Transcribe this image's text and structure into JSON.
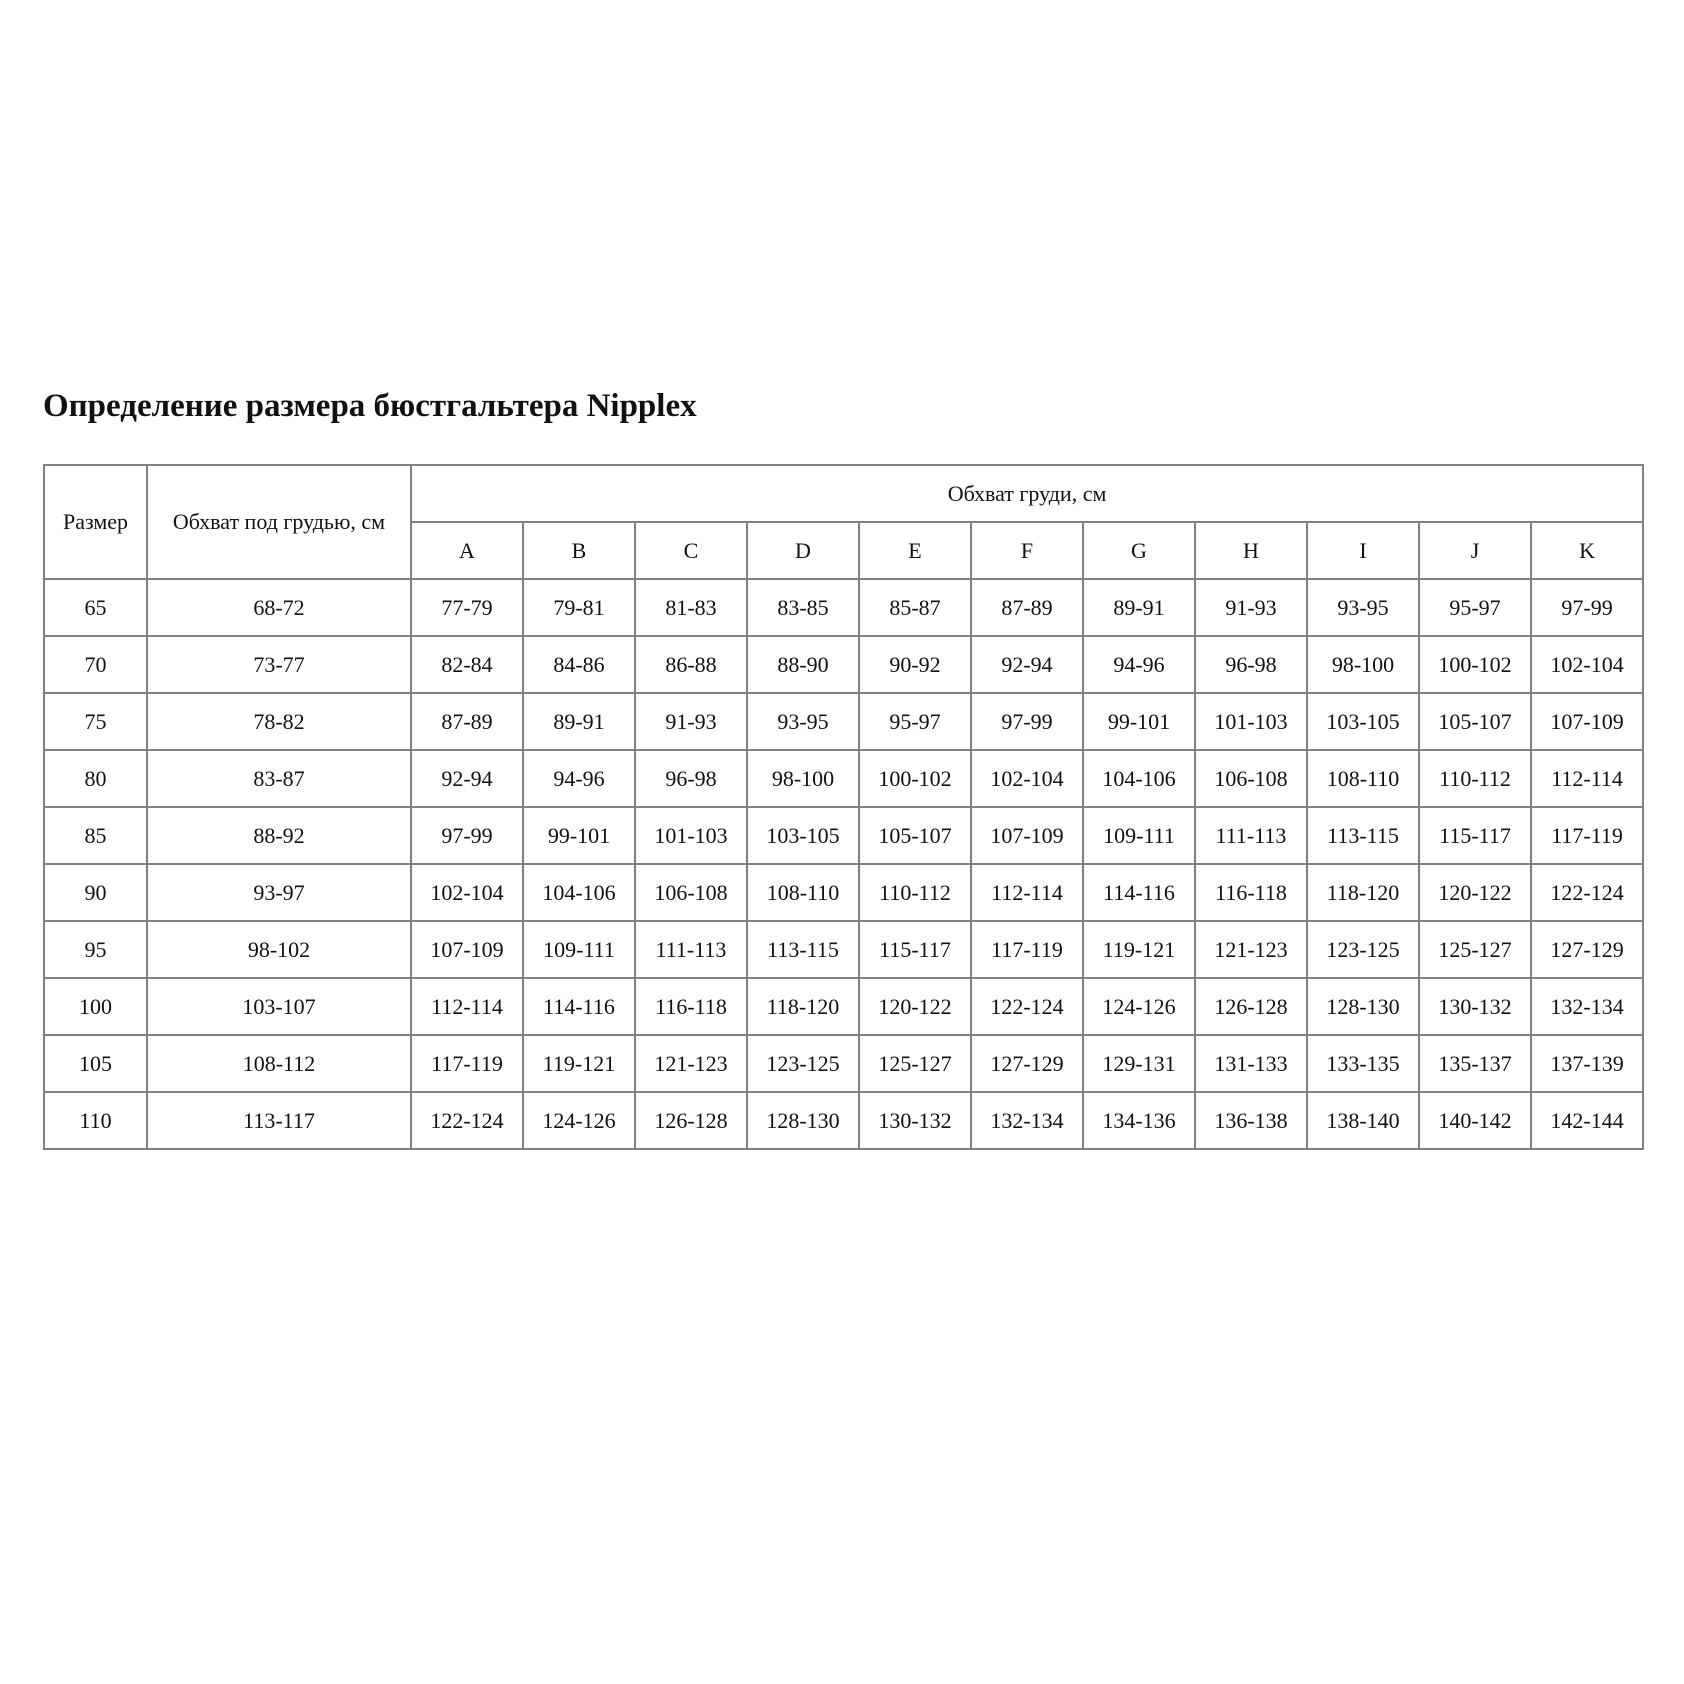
{
  "title": "Определение размера бюстгальтера Nipplex",
  "headers": {
    "size": "Размер",
    "underbust": "Обхват под грудью, см",
    "bust": "Обхват груди, см",
    "cups": [
      "A",
      "B",
      "C",
      "D",
      "E",
      "F",
      "G",
      "H",
      "I",
      "J",
      "K"
    ]
  },
  "rows": [
    {
      "size": "65",
      "underbust": "68-72",
      "values": [
        "77-79",
        "79-81",
        "81-83",
        "83-85",
        "85-87",
        "87-89",
        "89-91",
        "91-93",
        "93-95",
        "95-97",
        "97-99"
      ]
    },
    {
      "size": "70",
      "underbust": "73-77",
      "values": [
        "82-84",
        "84-86",
        "86-88",
        "88-90",
        "90-92",
        "92-94",
        "94-96",
        "96-98",
        "98-100",
        "100-102",
        "102-104"
      ]
    },
    {
      "size": "75",
      "underbust": "78-82",
      "values": [
        "87-89",
        "89-91",
        "91-93",
        "93-95",
        "95-97",
        "97-99",
        "99-101",
        "101-103",
        "103-105",
        "105-107",
        "107-109"
      ]
    },
    {
      "size": "80",
      "underbust": "83-87",
      "values": [
        "92-94",
        "94-96",
        "96-98",
        "98-100",
        "100-102",
        "102-104",
        "104-106",
        "106-108",
        "108-110",
        "110-112",
        "112-114"
      ]
    },
    {
      "size": "85",
      "underbust": "88-92",
      "values": [
        "97-99",
        "99-101",
        "101-103",
        "103-105",
        "105-107",
        "107-109",
        "109-111",
        "111-113",
        "113-115",
        "115-117",
        "117-119"
      ]
    },
    {
      "size": "90",
      "underbust": "93-97",
      "values": [
        "102-104",
        "104-106",
        "106-108",
        "108-110",
        "110-112",
        "112-114",
        "114-116",
        "116-118",
        "118-120",
        "120-122",
        "122-124"
      ]
    },
    {
      "size": "95",
      "underbust": "98-102",
      "values": [
        "107-109",
        "109-111",
        "111-113",
        "113-115",
        "115-117",
        "117-119",
        "119-121",
        "121-123",
        "123-125",
        "125-127",
        "127-129"
      ]
    },
    {
      "size": "100",
      "underbust": "103-107",
      "values": [
        "112-114",
        "114-116",
        "116-118",
        "118-120",
        "120-122",
        "122-124",
        "124-126",
        "126-128",
        "128-130",
        "130-132",
        "132-134"
      ]
    },
    {
      "size": "105",
      "underbust": "108-112",
      "values": [
        "117-119",
        "119-121",
        "121-123",
        "123-125",
        "125-127",
        "127-129",
        "129-131",
        "131-133",
        "133-135",
        "135-137",
        "137-139"
      ]
    },
    {
      "size": "110",
      "underbust": "113-117",
      "values": [
        "122-124",
        "124-126",
        "126-128",
        "128-130",
        "130-132",
        "132-134",
        "134-136",
        "136-138",
        "138-140",
        "140-142",
        "142-144"
      ]
    }
  ]
}
